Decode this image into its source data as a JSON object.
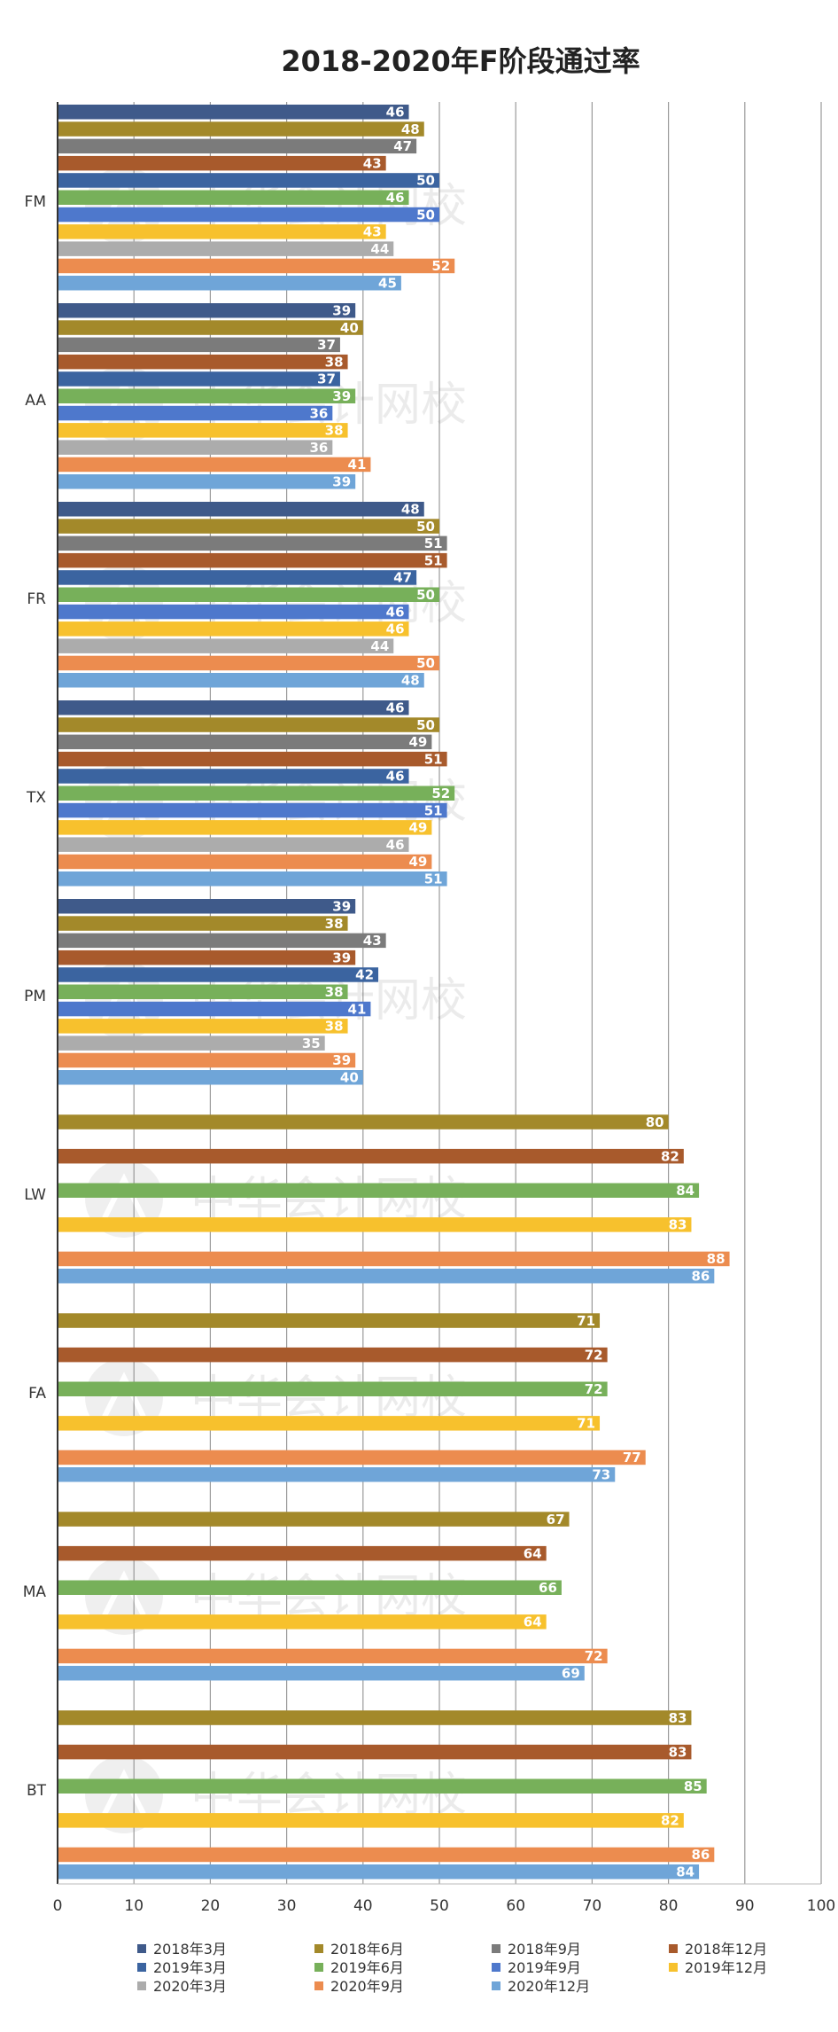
{
  "chart_data": {
    "type": "bar",
    "orientation": "horizontal",
    "title": "2018-2020年F阶段通过率",
    "xlim": [
      0,
      100
    ],
    "xticks": [
      0,
      10,
      20,
      30,
      40,
      50,
      60,
      70,
      80,
      90,
      100
    ],
    "grid": "vertical",
    "legend_position": "bottom",
    "categories": [
      "FM",
      "AA",
      "FR",
      "TX",
      "PM",
      "LW",
      "FA",
      "MA",
      "BT"
    ],
    "series": [
      {
        "name": "2018年3月",
        "color": "#3f5a8a",
        "values": [
          46,
          39,
          48,
          46,
          39,
          null,
          null,
          null,
          null
        ]
      },
      {
        "name": "2018年6月",
        "color": "#a3892a",
        "values": [
          48,
          40,
          50,
          50,
          38,
          80,
          71,
          67,
          83
        ]
      },
      {
        "name": "2018年9月",
        "color": "#7b7b7b",
        "values": [
          47,
          37,
          51,
          49,
          43,
          null,
          null,
          null,
          null
        ]
      },
      {
        "name": "2018年12月",
        "color": "#a85a2c",
        "values": [
          43,
          38,
          51,
          51,
          39,
          82,
          72,
          64,
          83
        ]
      },
      {
        "name": "2019年3月",
        "color": "#3b64a0",
        "values": [
          50,
          37,
          47,
          46,
          42,
          null,
          null,
          null,
          null
        ]
      },
      {
        "name": "2019年6月",
        "color": "#77b05a",
        "values": [
          46,
          39,
          50,
          52,
          38,
          84,
          72,
          66,
          85
        ]
      },
      {
        "name": "2019年9月",
        "color": "#4e78cc",
        "values": [
          50,
          36,
          46,
          51,
          41,
          null,
          null,
          null,
          null
        ]
      },
      {
        "name": "2019年12月",
        "color": "#f7c12d",
        "values": [
          43,
          38,
          46,
          49,
          38,
          83,
          71,
          64,
          82
        ]
      },
      {
        "name": "2020年3月",
        "color": "#acacac",
        "values": [
          44,
          36,
          44,
          46,
          35,
          null,
          null,
          null,
          null
        ]
      },
      {
        "name": "2020年9月",
        "color": "#ec8c4f",
        "values": [
          52,
          41,
          50,
          49,
          39,
          88,
          77,
          72,
          86
        ]
      },
      {
        "name": "2020年12月",
        "color": "#6fa5d8",
        "values": [
          45,
          39,
          48,
          51,
          40,
          86,
          73,
          69,
          84
        ]
      }
    ]
  },
  "watermark": {
    "text": "中华会计网校"
  }
}
